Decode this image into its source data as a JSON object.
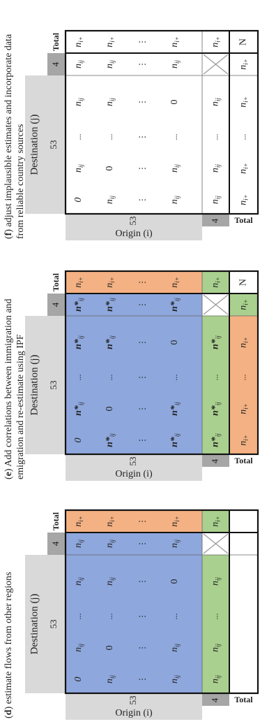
{
  "colors": {
    "blue": "#8EA7DC",
    "green": "#A9D08E",
    "orange": "#F4B183",
    "light_gray": "#D9D9D9",
    "dark_gray": "#A6A6A6",
    "white": "#FFFFFF"
  },
  "labels": {
    "destination": "Destination (j)",
    "origin": "Origin (i)",
    "count_53": "53",
    "count_4": "4",
    "total": "Total",
    "N": "N",
    "zero": "0",
    "dots": "...",
    "vdots": "⋮"
  },
  "panels": [
    {
      "letter": "d",
      "caption": "estimate flows from other regions",
      "style": "colored",
      "cell_text": "n",
      "cell_sub": "ij",
      "star": false,
      "bottom_row": "blank",
      "show_N": false,
      "bottom_53_color": "green",
      "bottom_4_color": "green"
    },
    {
      "letter": "e",
      "caption": "Add correlations between immigration and emigration and re-estimate using IPF",
      "style": "colored",
      "cell_text": "n",
      "cell_sub": "ij",
      "star": true,
      "bottom_row": "n_plus",
      "show_N": true,
      "bottom_53_color": "orange",
      "bottom_4_color": "green"
    },
    {
      "letter": "f",
      "caption": "adjust implausible estimates and incorporate data from reliable country sources",
      "style": "plain",
      "cell_text": "n",
      "cell_sub": "ij",
      "star": false,
      "bottom_row": "n_plus",
      "show_N": true,
      "bottom_53_color": "white",
      "bottom_4_color": "white"
    }
  ],
  "totals_label": {
    "base": "n",
    "sub": "i+"
  }
}
